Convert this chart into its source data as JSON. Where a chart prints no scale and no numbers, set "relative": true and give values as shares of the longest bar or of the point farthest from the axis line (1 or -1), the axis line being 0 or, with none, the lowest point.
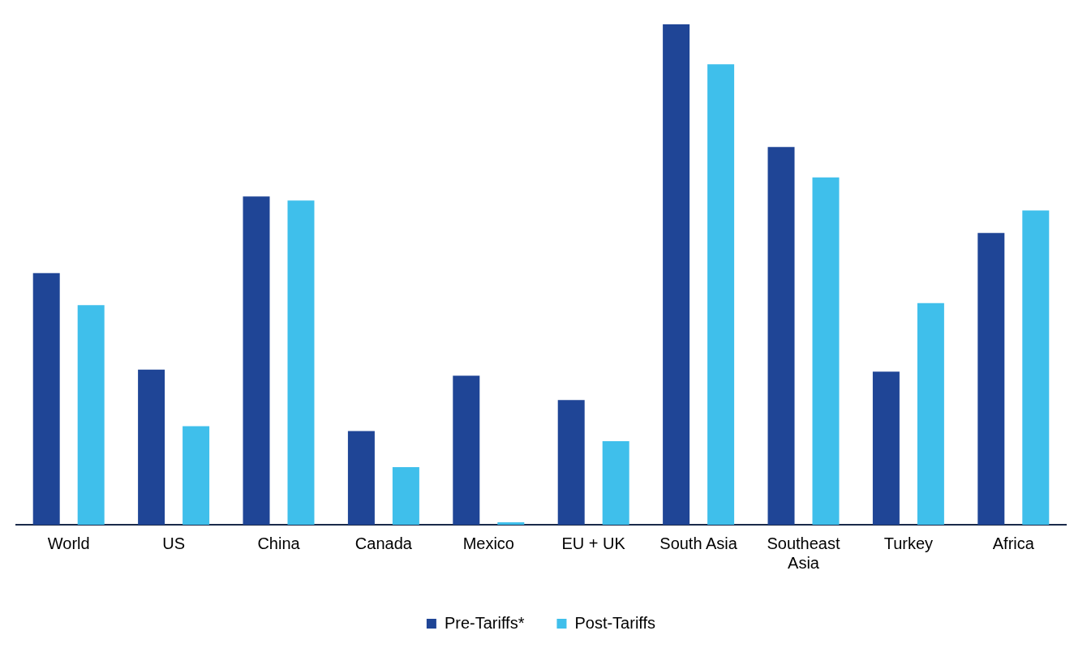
{
  "chart_data": {
    "type": "bar",
    "relative": true,
    "legend": "bottom",
    "grid": false,
    "categories": [
      "World",
      "US",
      "China",
      "Canada",
      "Mexico",
      "EU + UK",
      "South Asia",
      "Southeast Asia",
      "Turkey",
      "Africa"
    ],
    "series": [
      {
        "name": "Pre-Tariffs*",
        "color": "#1f4596",
        "values": [
          0.503,
          0.31,
          0.656,
          0.187,
          0.298,
          0.249,
          1,
          0.755,
          0.306,
          0.583
        ]
      },
      {
        "name": "Post-Tariffs",
        "color": "#3fbfeb",
        "values": [
          0.439,
          0.197,
          0.648,
          0.115,
          0.005,
          0.167,
          0.92,
          0.694,
          0.443,
          0.628
        ]
      }
    ]
  }
}
